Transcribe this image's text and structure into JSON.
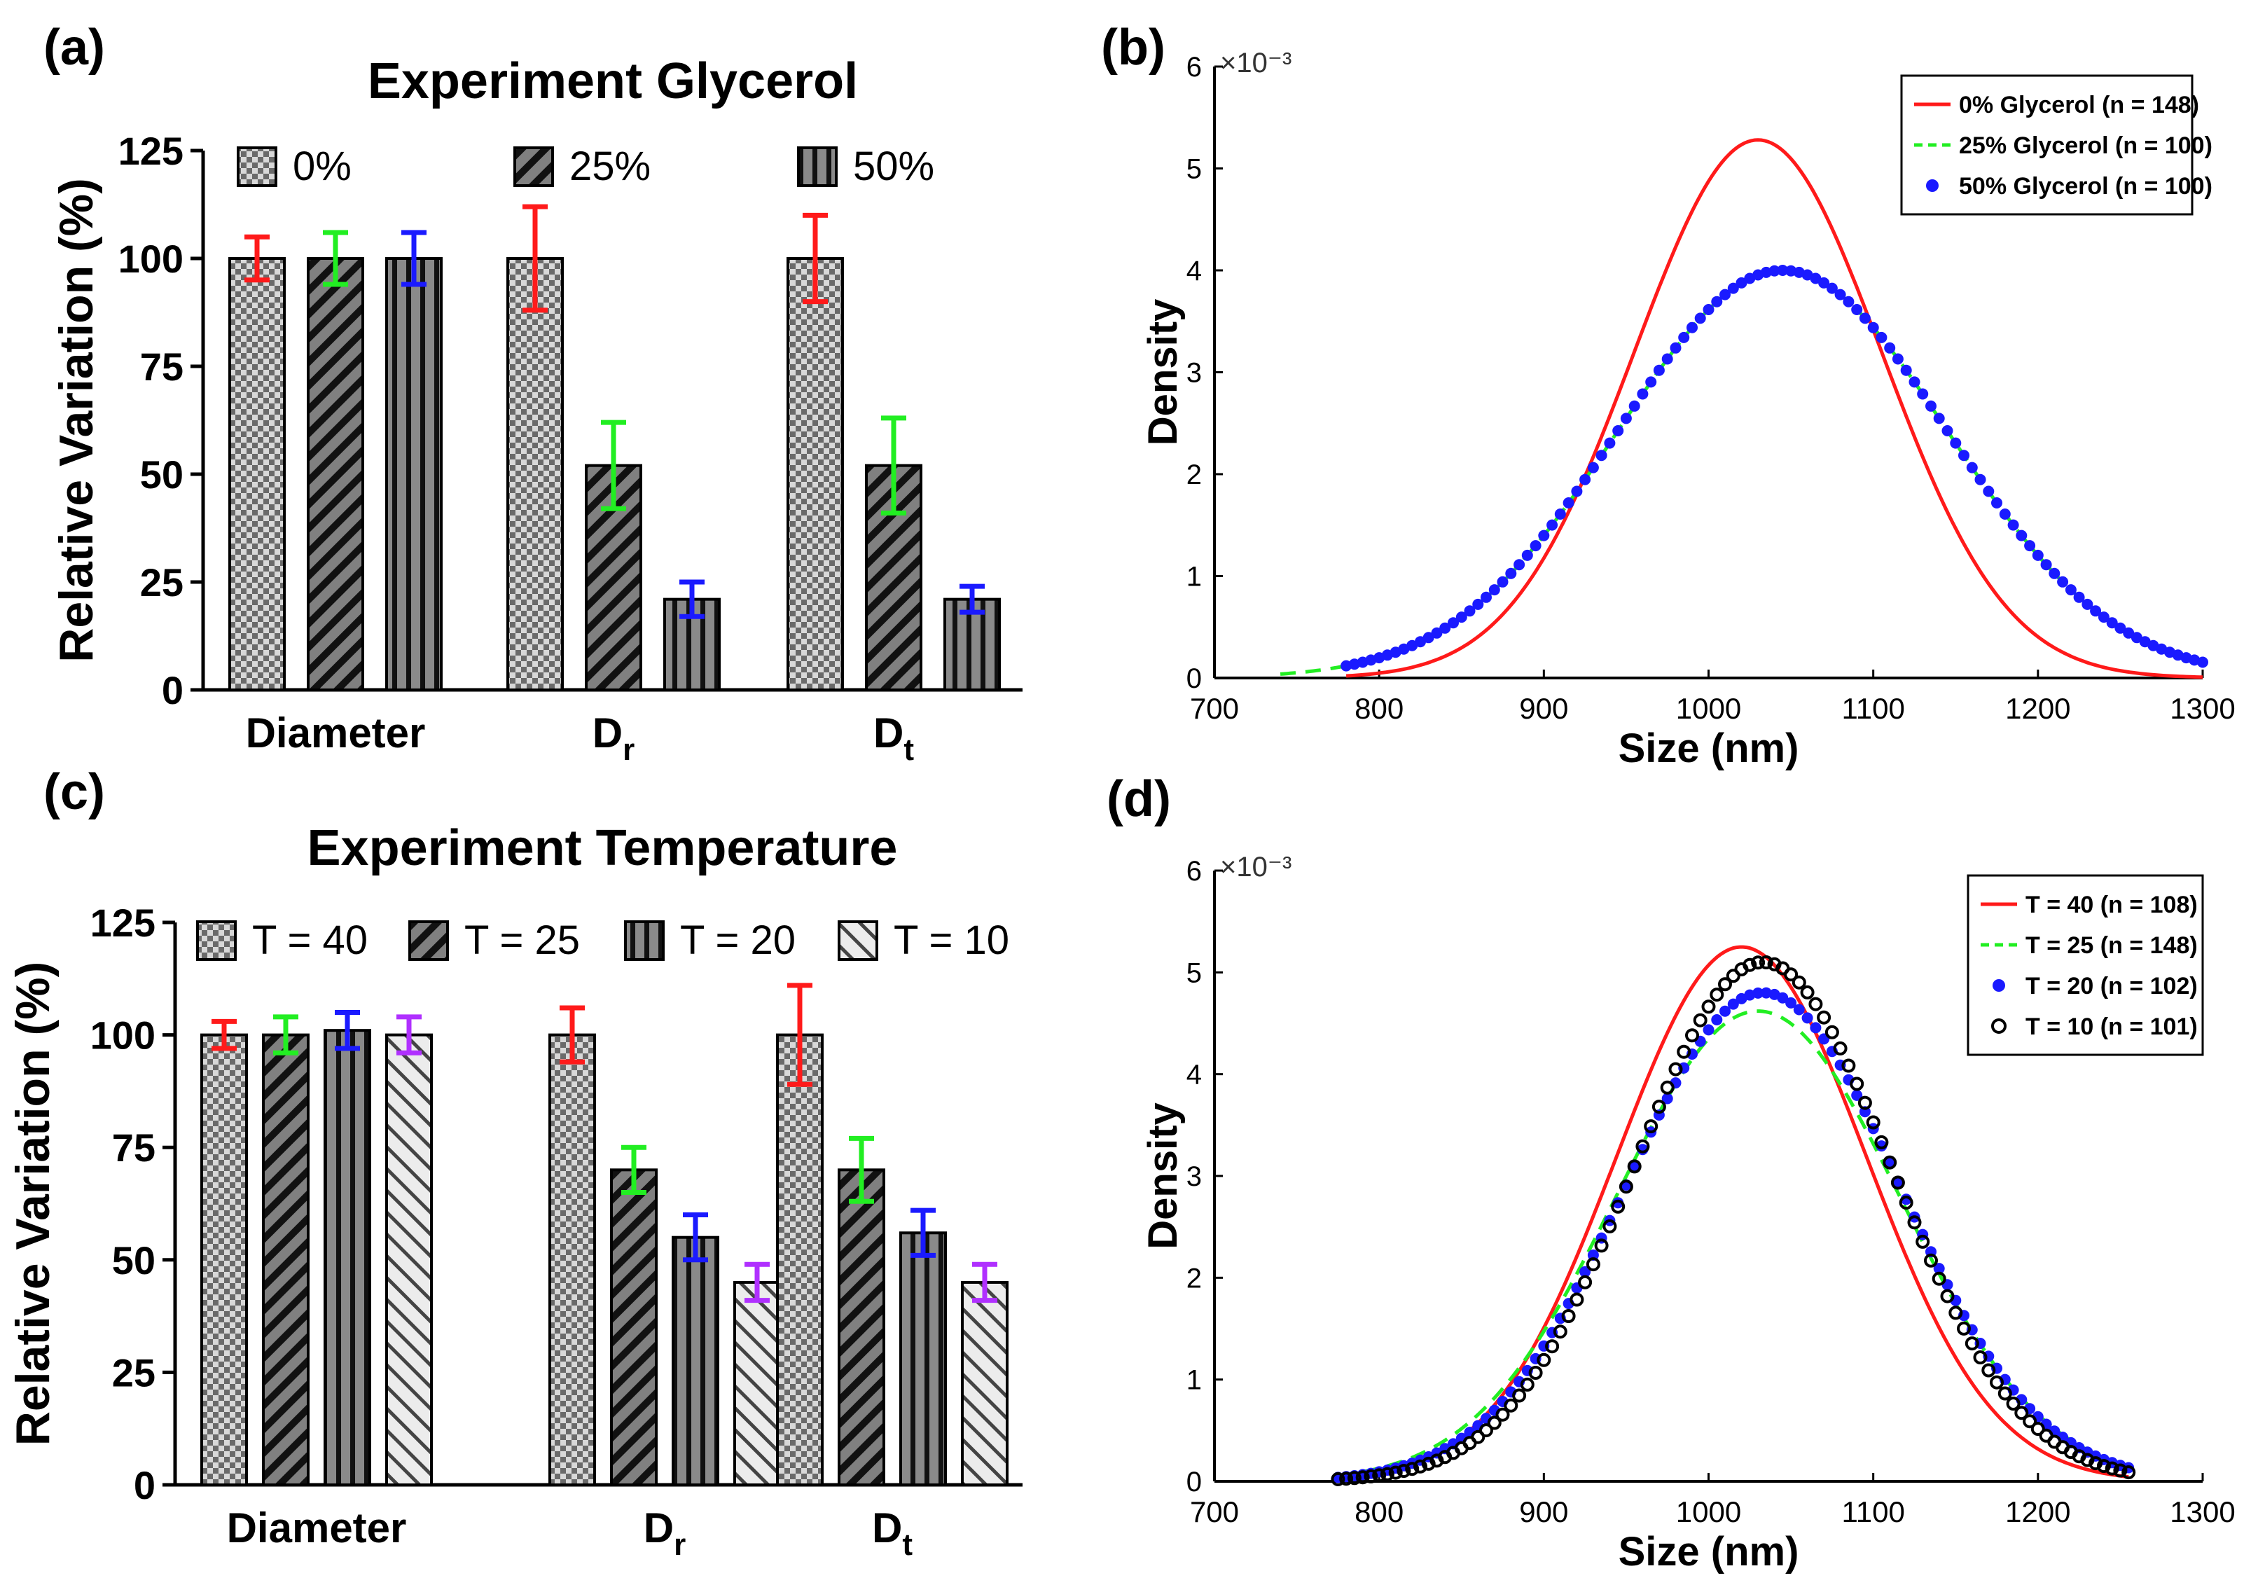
{
  "panels": {
    "a_label": "(a)",
    "b_label": "(b)",
    "c_label": "(c)",
    "d_label": "(d)"
  },
  "colors": {
    "red": "#ff1a1a",
    "green": "#22ee22",
    "blue": "#1a1aff",
    "purple": "#b030ff",
    "black": "#000000",
    "bar_gray": "#808080",
    "light_gray": "#e6e6e6"
  },
  "chart_data": [
    {
      "id": "a",
      "type": "bar",
      "title": "Experiment Glycerol",
      "ylabel": "Relative Variation (%)",
      "xlabel": "",
      "ylim": [
        0,
        125
      ],
      "yticks": [
        "0",
        "25",
        "50",
        "75",
        "100",
        "125"
      ],
      "categories": [
        "Diameter",
        "D_r",
        "D_t"
      ],
      "category_labels": [
        {
          "main": "Diameter",
          "sub": ""
        },
        {
          "main": "D",
          "sub": "r"
        },
        {
          "main": "D",
          "sub": "t"
        }
      ],
      "series": [
        {
          "name": "0%",
          "pattern": "check",
          "err_color": "red",
          "values": [
            100,
            100,
            100
          ],
          "errors": [
            5,
            12,
            10
          ]
        },
        {
          "name": "25%",
          "pattern": "diag",
          "err_color": "green",
          "values": [
            100,
            52,
            52
          ],
          "errors": [
            6,
            10,
            11
          ]
        },
        {
          "name": "50%",
          "pattern": "vert",
          "err_color": "blue",
          "values": [
            100,
            21,
            21
          ],
          "errors": [
            6,
            4,
            3
          ]
        }
      ]
    },
    {
      "id": "b",
      "type": "line",
      "xlabel": "Size (nm)",
      "ylabel": "Density",
      "exponent": "×10⁻³",
      "xlim": [
        700,
        1300
      ],
      "ylim": [
        0,
        6
      ],
      "xticks": [
        "700",
        "800",
        "900",
        "1000",
        "1100",
        "1200",
        "1300"
      ],
      "yticks": [
        "0",
        "1",
        "2",
        "3",
        "4",
        "5",
        "6"
      ],
      "series": [
        {
          "name": "0%  Glycerol  (n = 148)",
          "style": "solid",
          "color": "red",
          "mean": 1030,
          "sd": 75,
          "peak": 5.28,
          "range": [
            780,
            1300
          ]
        },
        {
          "name": "25% Glycerol (n = 100)",
          "style": "dashed",
          "color": "green",
          "mean": 1045,
          "sd": 100,
          "peak": 4.0,
          "range": [
            740,
            1300
          ]
        },
        {
          "name": "50% Glycerol (n = 100)",
          "style": "dots",
          "color": "blue",
          "mean": 1045,
          "sd": 100,
          "peak": 4.0,
          "range": [
            780,
            1300
          ]
        }
      ]
    },
    {
      "id": "c",
      "type": "bar",
      "title": "Experiment Temperature",
      "ylabel": "Relative Variation (%)",
      "xlabel": "",
      "ylim": [
        0,
        125
      ],
      "yticks": [
        "0",
        "25",
        "50",
        "75",
        "100",
        "125"
      ],
      "categories": [
        "Diameter",
        "D_r",
        "D_t"
      ],
      "category_labels": [
        {
          "main": "Diameter",
          "sub": ""
        },
        {
          "main": "D",
          "sub": "r"
        },
        {
          "main": "D",
          "sub": "t"
        }
      ],
      "series": [
        {
          "name": "T = 40",
          "pattern": "check",
          "err_color": "red",
          "values": [
            100,
            100,
            100
          ],
          "errors": [
            3,
            6,
            11
          ]
        },
        {
          "name": "T = 25",
          "pattern": "diag",
          "err_color": "green",
          "values": [
            100,
            70,
            70
          ],
          "errors": [
            4,
            5,
            7
          ]
        },
        {
          "name": "T = 20",
          "pattern": "vert",
          "err_color": "blue",
          "values": [
            101,
            55,
            56
          ],
          "errors": [
            4,
            5,
            5
          ]
        },
        {
          "name": "T = 10",
          "pattern": "light",
          "err_color": "purple",
          "values": [
            100,
            45,
            45
          ],
          "errors": [
            4,
            4,
            4
          ]
        }
      ]
    },
    {
      "id": "d",
      "type": "line",
      "xlabel": "Size (nm)",
      "ylabel": "Density",
      "exponent": "×10⁻³",
      "xlim": [
        700,
        1300
      ],
      "ylim": [
        0,
        6
      ],
      "xticks": [
        "700",
        "800",
        "900",
        "1000",
        "1100",
        "1200",
        "1300"
      ],
      "yticks": [
        "0",
        "1",
        "2",
        "3",
        "4",
        "5",
        "6"
      ],
      "series": [
        {
          "name": "T = 40 (n = 108)",
          "style": "solid",
          "color": "red",
          "mean": 1020,
          "sd": 76,
          "peak": 5.25,
          "range": [
            775,
            1255
          ]
        },
        {
          "name": "T = 25 (n = 148)",
          "style": "dashed",
          "color": "green",
          "mean": 1030,
          "sd": 86,
          "peak": 4.62,
          "range": [
            775,
            1255
          ]
        },
        {
          "name": "T = 20 (n = 102)",
          "style": "dots",
          "color": "blue",
          "mean": 1033,
          "sd": 83,
          "peak": 4.8,
          "range": [
            775,
            1255
          ]
        },
        {
          "name": "T = 10 (n = 101)",
          "style": "circles",
          "color": "black",
          "mean": 1033,
          "sd": 78,
          "peak": 5.1,
          "range": [
            775,
            1255
          ]
        }
      ]
    }
  ]
}
